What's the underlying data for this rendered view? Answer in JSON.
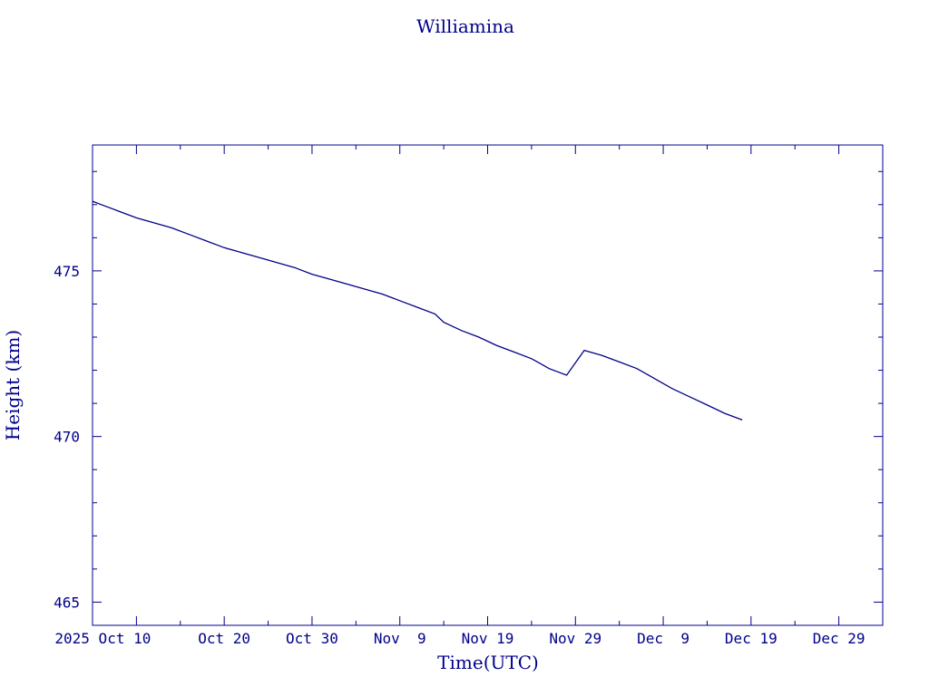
{
  "chart_data": {
    "type": "line",
    "title": "Williamina",
    "xlabel": "Time(UTC)",
    "ylabel": "Height (km)",
    "ylim": [
      464.3,
      478.8
    ],
    "xlim": [
      "2025-10-05",
      "2026-01-03"
    ],
    "x_ticks": [
      {
        "date": "2025-10-10",
        "label": "2025 Oct 10"
      },
      {
        "date": "2025-10-20",
        "label": "Oct 20"
      },
      {
        "date": "2025-10-30",
        "label": "Oct 30"
      },
      {
        "date": "2025-11-09",
        "label": "Nov  9"
      },
      {
        "date": "2025-11-19",
        "label": "Nov 19"
      },
      {
        "date": "2025-11-29",
        "label": "Nov 29"
      },
      {
        "date": "2025-12-09",
        "label": "Dec  9"
      },
      {
        "date": "2025-12-19",
        "label": "Dec 19"
      },
      {
        "date": "2025-12-29",
        "label": "Dec 29"
      }
    ],
    "y_ticks": [
      465,
      470,
      475
    ],
    "grid": false,
    "series": [
      {
        "color": "#00008b",
        "x": [
          "2025-10-05",
          "2025-10-06",
          "2025-10-08",
          "2025-10-10",
          "2025-10-12",
          "2025-10-14",
          "2025-10-16",
          "2025-10-18",
          "2025-10-20",
          "2025-10-22",
          "2025-10-24",
          "2025-10-26",
          "2025-10-28",
          "2025-10-30",
          "2025-11-01",
          "2025-11-03",
          "2025-11-05",
          "2025-11-07",
          "2025-11-08",
          "2025-11-09",
          "2025-11-11",
          "2025-11-13",
          "2025-11-14",
          "2025-11-16",
          "2025-11-18",
          "2025-11-20",
          "2025-11-22",
          "2025-11-24",
          "2025-11-25",
          "2025-11-26",
          "2025-11-28",
          "2025-11-30",
          "2025-12-02",
          "2025-12-04",
          "2025-12-06",
          "2025-12-08",
          "2025-12-10",
          "2025-12-12",
          "2025-12-14",
          "2025-12-16",
          "2025-12-18"
        ],
        "y": [
          477.1,
          477.0,
          476.8,
          476.6,
          476.45,
          476.3,
          476.1,
          475.9,
          475.7,
          475.55,
          475.4,
          475.25,
          475.1,
          474.9,
          474.75,
          474.6,
          474.45,
          474.3,
          474.2,
          474.1,
          473.9,
          473.7,
          473.45,
          473.2,
          473.0,
          472.75,
          472.55,
          472.35,
          472.2,
          472.05,
          471.85,
          472.6,
          472.45,
          472.25,
          472.05,
          471.75,
          471.45,
          471.2,
          470.95,
          470.7,
          470.5
        ]
      }
    ]
  }
}
